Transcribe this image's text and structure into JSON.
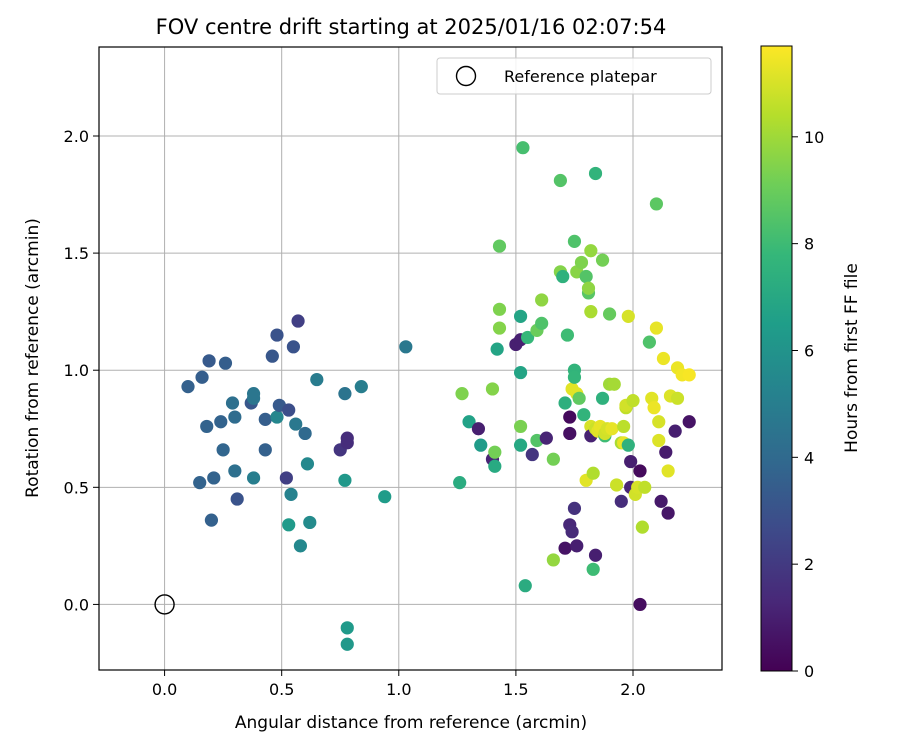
{
  "chart_data": {
    "type": "scatter",
    "title": "FOV centre drift starting at 2025/01/16 02:07:54",
    "xlabel": "Angular distance from reference (arcmin)",
    "ylabel": "Rotation from reference (arcmin)",
    "xlim": [
      -0.28,
      2.38
    ],
    "ylim": [
      -0.28,
      2.38
    ],
    "xticks": [
      "0.0",
      "0.5",
      "1.0",
      "1.5",
      "2.0"
    ],
    "xtick_values": [
      0,
      0.5,
      1.0,
      1.5,
      2.0
    ],
    "yticks": [
      "0.0",
      "0.5",
      "1.0",
      "1.5",
      "2.0"
    ],
    "ytick_values": [
      0,
      0.5,
      1.0,
      1.5,
      2.0
    ],
    "grid": true,
    "legend": {
      "placement": "top-right",
      "label": "Reference platepar"
    },
    "reference_point": {
      "x": 0.0,
      "y": 0.0
    },
    "colorbar": {
      "label": "Hours from first FF file",
      "min": 0,
      "max": 11.7,
      "ticks": [
        "0",
        "2",
        "4",
        "6",
        "8",
        "10"
      ],
      "tick_values": [
        0,
        2,
        4,
        6,
        8,
        10
      ],
      "colormap": "viridis",
      "colors": [
        "#440154",
        "#482878",
        "#3e4989",
        "#31688e",
        "#26828e",
        "#1f9e89",
        "#35b779",
        "#6ece58",
        "#b5de2b",
        "#fde725"
      ]
    },
    "points": [
      [
        0.1,
        0.93,
        3.6
      ],
      [
        0.15,
        0.52,
        3.7
      ],
      [
        0.16,
        0.97,
        3.5
      ],
      [
        0.18,
        0.76,
        3.7
      ],
      [
        0.19,
        1.04,
        3.3
      ],
      [
        0.2,
        0.36,
        3.6
      ],
      [
        0.21,
        0.54,
        3.7
      ],
      [
        0.24,
        0.78,
        3.7
      ],
      [
        0.25,
        0.66,
        3.8
      ],
      [
        0.26,
        1.03,
        3.5
      ],
      [
        0.29,
        0.86,
        4.3
      ],
      [
        0.3,
        0.8,
        4.1
      ],
      [
        0.3,
        0.57,
        4.3
      ],
      [
        0.31,
        0.45,
        3.0
      ],
      [
        0.37,
        0.86,
        3.2
      ],
      [
        0.38,
        0.88,
        4.6
      ],
      [
        0.38,
        0.9,
        4.6
      ],
      [
        0.38,
        0.54,
        5.0
      ],
      [
        0.43,
        0.79,
        3.5
      ],
      [
        0.43,
        0.66,
        3.6
      ],
      [
        0.46,
        1.06,
        3.2
      ],
      [
        0.48,
        0.8,
        5.4
      ],
      [
        0.48,
        1.15,
        3.0
      ],
      [
        0.49,
        0.85,
        3.3
      ],
      [
        0.52,
        0.54,
        2.2
      ],
      [
        0.53,
        0.83,
        2.8
      ],
      [
        0.53,
        0.34,
        6.3
      ],
      [
        0.54,
        0.47,
        5.2
      ],
      [
        0.55,
        1.1,
        3.0
      ],
      [
        0.56,
        0.77,
        4.7
      ],
      [
        0.57,
        1.21,
        2.2
      ],
      [
        0.58,
        0.25,
        5.5
      ],
      [
        0.6,
        0.73,
        4.0
      ],
      [
        0.61,
        0.6,
        5.5
      ],
      [
        0.62,
        0.35,
        5.6
      ],
      [
        0.65,
        0.96,
        4.9
      ],
      [
        0.75,
        0.66,
        1.8
      ],
      [
        0.77,
        0.9,
        4.5
      ],
      [
        0.77,
        0.53,
        6.2
      ],
      [
        0.78,
        0.69,
        1.5
      ],
      [
        0.78,
        0.71,
        1.5
      ],
      [
        0.78,
        -0.1,
        6.3
      ],
      [
        0.78,
        -0.17,
        6.2
      ],
      [
        0.84,
        0.93,
        5.0
      ],
      [
        0.94,
        0.46,
        6.4
      ],
      [
        1.03,
        1.1,
        4.7
      ],
      [
        1.26,
        0.52,
        7.2
      ],
      [
        1.27,
        0.9,
        9.4
      ],
      [
        1.3,
        0.78,
        6.7
      ],
      [
        1.34,
        0.75,
        1.0
      ],
      [
        1.35,
        0.68,
        6.4
      ],
      [
        1.4,
        0.92,
        9.5
      ],
      [
        1.4,
        0.62,
        1.2
      ],
      [
        1.41,
        0.65,
        9.2
      ],
      [
        1.41,
        0.59,
        7.1
      ],
      [
        1.42,
        1.09,
        6.8
      ],
      [
        1.43,
        1.26,
        9.4
      ],
      [
        1.43,
        1.53,
        8.8
      ],
      [
        1.43,
        1.18,
        9.5
      ],
      [
        1.5,
        1.11,
        1.0
      ],
      [
        1.52,
        1.13,
        1.0
      ],
      [
        1.52,
        1.23,
        6.8
      ],
      [
        1.52,
        0.99,
        6.8
      ],
      [
        1.52,
        0.76,
        9.3
      ],
      [
        1.52,
        0.68,
        7.0
      ],
      [
        1.53,
        1.95,
        8.2
      ],
      [
        1.54,
        0.08,
        7.2
      ],
      [
        1.55,
        1.14,
        7.8
      ],
      [
        1.57,
        0.64,
        1.8
      ],
      [
        1.59,
        0.7,
        8.5
      ],
      [
        1.59,
        1.17,
        9.0
      ],
      [
        1.61,
        1.3,
        9.7
      ],
      [
        1.61,
        1.2,
        8.4
      ],
      [
        1.63,
        0.71,
        1.2
      ],
      [
        1.66,
        0.62,
        9.2
      ],
      [
        1.66,
        0.19,
        9.8
      ],
      [
        1.69,
        1.81,
        8.5
      ],
      [
        1.69,
        1.42,
        9.5
      ],
      [
        1.7,
        1.4,
        7.5
      ],
      [
        1.71,
        0.86,
        7.4
      ],
      [
        1.71,
        0.24,
        0.6
      ],
      [
        1.72,
        1.15,
        8.0
      ],
      [
        1.73,
        0.8,
        0.3
      ],
      [
        1.73,
        0.73,
        0.5
      ],
      [
        1.73,
        0.34,
        1.3
      ],
      [
        1.74,
        0.31,
        1.4
      ],
      [
        1.74,
        0.92,
        11.2
      ],
      [
        1.75,
        1.55,
        8.4
      ],
      [
        1.75,
        1.0,
        7.6
      ],
      [
        1.75,
        0.97,
        7.7
      ],
      [
        1.75,
        0.41,
        1.7
      ],
      [
        1.76,
        0.9,
        11.2
      ],
      [
        1.76,
        1.42,
        9.6
      ],
      [
        1.76,
        0.25,
        1.0
      ],
      [
        1.77,
        0.88,
        8.8
      ],
      [
        1.78,
        1.46,
        9.4
      ],
      [
        1.79,
        0.81,
        7.6
      ],
      [
        1.8,
        1.4,
        8.5
      ],
      [
        1.8,
        0.53,
        11.2
      ],
      [
        1.81,
        1.33,
        8.6
      ],
      [
        1.81,
        1.35,
        9.7
      ],
      [
        1.82,
        1.51,
        9.8
      ],
      [
        1.82,
        1.25,
        10.2
      ],
      [
        1.82,
        0.76,
        11.0
      ],
      [
        1.82,
        0.72,
        1.1
      ],
      [
        1.83,
        0.56,
        10.3
      ],
      [
        1.83,
        0.15,
        8.0
      ],
      [
        1.84,
        1.84,
        7.6
      ],
      [
        1.84,
        0.21,
        1.0
      ],
      [
        1.84,
        0.75,
        10.8
      ],
      [
        1.85,
        0.74,
        11.2
      ],
      [
        1.86,
        0.76,
        11.3
      ],
      [
        1.87,
        1.47,
        9.2
      ],
      [
        1.87,
        0.88,
        7.5
      ],
      [
        1.88,
        0.72,
        8.0
      ],
      [
        1.88,
        0.73,
        10.9
      ],
      [
        1.89,
        0.75,
        11.0
      ],
      [
        1.9,
        1.24,
        8.9
      ],
      [
        1.9,
        0.94,
        10.0
      ],
      [
        1.91,
        0.75,
        11.3
      ],
      [
        1.92,
        0.94,
        10.1
      ],
      [
        1.93,
        0.51,
        10.8
      ],
      [
        1.95,
        0.44,
        1.5
      ],
      [
        1.95,
        0.69,
        10.2
      ],
      [
        1.96,
        0.76,
        10.5
      ],
      [
        1.96,
        0.69,
        11.3
      ],
      [
        1.97,
        0.84,
        10.6
      ],
      [
        1.97,
        0.85,
        10.9
      ],
      [
        1.98,
        1.23,
        11.0
      ],
      [
        1.98,
        0.68,
        7.5
      ],
      [
        1.99,
        0.61,
        1.0
      ],
      [
        1.99,
        0.5,
        1.2
      ],
      [
        2.0,
        0.87,
        10.6
      ],
      [
        2.01,
        0.47,
        10.9
      ],
      [
        2.02,
        0.5,
        11.0
      ],
      [
        2.03,
        0.0,
        0.4
      ],
      [
        2.03,
        0.57,
        0.3
      ],
      [
        2.04,
        0.33,
        10.3
      ],
      [
        2.05,
        0.5,
        10.6
      ],
      [
        2.07,
        1.12,
        8.4
      ],
      [
        2.08,
        0.88,
        11.2
      ],
      [
        2.09,
        0.84,
        11.4
      ],
      [
        2.1,
        1.18,
        11.3
      ],
      [
        2.1,
        1.71,
        8.7
      ],
      [
        2.11,
        0.78,
        11.0
      ],
      [
        2.11,
        0.7,
        11.1
      ],
      [
        2.12,
        0.44,
        0.8
      ],
      [
        2.13,
        1.05,
        11.4
      ],
      [
        2.14,
        0.65,
        0.9
      ],
      [
        2.15,
        0.57,
        11.2
      ],
      [
        2.15,
        0.39,
        0.7
      ],
      [
        2.16,
        0.89,
        11.1
      ],
      [
        2.18,
        0.74,
        1.0
      ],
      [
        2.19,
        0.88,
        10.8
      ],
      [
        2.19,
        1.01,
        11.4
      ],
      [
        2.21,
        0.98,
        11.5
      ],
      [
        2.24,
        0.98,
        11.6
      ],
      [
        2.24,
        0.78,
        0.6
      ]
    ]
  }
}
